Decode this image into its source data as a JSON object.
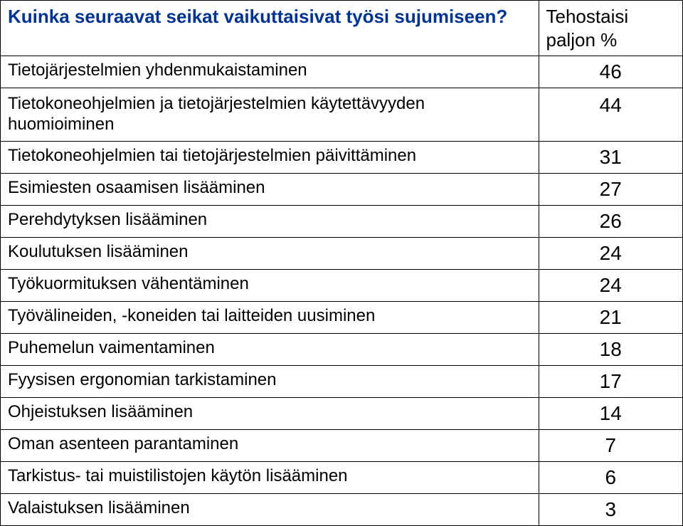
{
  "header": {
    "question": "Kuinka seuraavat seikat vaikuttaisivat työsi sujumiseen?",
    "colLabel": "Tehostaisi paljon %"
  },
  "rows": [
    {
      "label": "Tietojärjestelmien yhdenmukaistaminen",
      "value": "46"
    },
    {
      "label": "Tietokoneohjelmien ja tietojärjestelmien käytettävyyden huomioiminen",
      "value": "44"
    },
    {
      "label": "Tietokoneohjelmien tai tietojärjestelmien päivittäminen",
      "value": "31"
    },
    {
      "label": "Esimiesten osaamisen lisääminen",
      "value": "27"
    },
    {
      "label": "Perehdytyksen lisääminen",
      "value": "26"
    },
    {
      "label": "Koulutuksen lisääminen",
      "value": "24"
    },
    {
      "label": "Työkuormituksen vähentäminen",
      "value": "24"
    },
    {
      "label": "Työvälineiden, -koneiden tai laitteiden uusiminen",
      "value": "21"
    },
    {
      "label": "Puhemelun vaimentaminen",
      "value": "18"
    },
    {
      "label": "Fyysisen ergonomian tarkistaminen",
      "value": "17"
    },
    {
      "label": "Ohjeistuksen lisääminen",
      "value": "14"
    },
    {
      "label": "Oman asenteen parantaminen",
      "value": "7"
    },
    {
      "label": "Tarkistus- tai muistilistojen käytön lisääminen",
      "value": "6"
    },
    {
      "label": "Valaistuksen lisääminen",
      "value": "3"
    }
  ],
  "colors": {
    "headerText": "#003399",
    "bodyText": "#000000",
    "border": "#000000",
    "background": "#ffffff"
  },
  "fontSizes": {
    "header": 26,
    "rowLabel": 24,
    "rowValue": 28
  }
}
